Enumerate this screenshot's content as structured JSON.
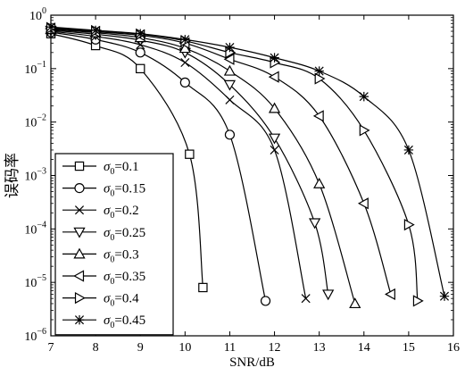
{
  "chart_data": {
    "type": "line",
    "xlabel": "SNR/dB",
    "ylabel": "误码率",
    "xlim": [
      7,
      16
    ],
    "ylim_exp": [
      -6,
      0
    ],
    "yscale": "log",
    "grid": false,
    "legend_position": "bottom-left",
    "x_ticks": [
      "7",
      "8",
      "9",
      "10",
      "11",
      "12",
      "13",
      "14",
      "15",
      "16"
    ],
    "y_ticks": [
      {
        "base": "10",
        "exp": "0"
      },
      {
        "base": "10",
        "exp": "−1"
      },
      {
        "base": "10",
        "exp": "−2"
      },
      {
        "base": "10",
        "exp": "−3"
      },
      {
        "base": "10",
        "exp": "−4"
      },
      {
        "base": "10",
        "exp": "−5"
      },
      {
        "base": "10",
        "exp": "−6"
      }
    ],
    "series": [
      {
        "name": "σ0=0.1",
        "symbol": "σ",
        "sub": "0",
        "value": "=0.1",
        "marker": "square",
        "x": [
          7,
          8,
          9,
          10.1,
          10.4
        ],
        "y": [
          0.45,
          0.27,
          0.1,
          0.0025,
          8e-06
        ]
      },
      {
        "name": "σ0=0.15",
        "symbol": "σ",
        "sub": "0",
        "value": "=0.15",
        "marker": "circle",
        "x": [
          7,
          8,
          9,
          10,
          11,
          11.8
        ],
        "y": [
          0.48,
          0.35,
          0.2,
          0.055,
          0.0058,
          4.5e-06
        ]
      },
      {
        "name": "σ0=0.2",
        "symbol": "σ",
        "sub": "0",
        "value": "=0.2",
        "marker": "x",
        "x": [
          7,
          8,
          9,
          10,
          11,
          12,
          12.7
        ],
        "y": [
          0.5,
          0.4,
          0.28,
          0.13,
          0.026,
          0.003,
          5e-06
        ]
      },
      {
        "name": "σ0=0.25",
        "symbol": "σ",
        "sub": "0",
        "value": "=0.25",
        "marker": "triangle-down",
        "x": [
          7,
          8,
          9,
          10,
          11,
          12,
          12.9,
          13.2
        ],
        "y": [
          0.52,
          0.44,
          0.34,
          0.2,
          0.05,
          0.005,
          0.00013,
          6e-06
        ]
      },
      {
        "name": "σ0=0.3",
        "symbol": "σ",
        "sub": "0",
        "value": "=0.3",
        "marker": "triangle-up",
        "x": [
          7,
          8,
          9,
          10,
          11,
          12,
          13,
          13.8
        ],
        "y": [
          0.54,
          0.47,
          0.38,
          0.24,
          0.09,
          0.018,
          0.0007,
          4e-06
        ]
      },
      {
        "name": "σ0=0.35",
        "symbol": "σ",
        "sub": "0",
        "value": "=0.35",
        "marker": "triangle-left",
        "x": [
          7,
          8,
          9,
          10,
          11,
          12,
          13,
          14,
          14.6
        ],
        "y": [
          0.56,
          0.49,
          0.42,
          0.3,
          0.15,
          0.07,
          0.013,
          0.0003,
          6e-06
        ]
      },
      {
        "name": "σ0=0.4",
        "symbol": "σ",
        "sub": "0",
        "value": "=0.4",
        "marker": "triangle-right",
        "x": [
          7,
          8,
          9,
          10,
          11,
          12,
          13,
          14,
          15,
          15.2
        ],
        "y": [
          0.58,
          0.51,
          0.44,
          0.33,
          0.2,
          0.13,
          0.065,
          0.007,
          0.00012,
          4.5e-06
        ]
      },
      {
        "name": "σ0=0.45",
        "symbol": "σ",
        "sub": "0",
        "value": "=0.45",
        "marker": "asterisk",
        "x": [
          7,
          8,
          9,
          10,
          11,
          12,
          13,
          14,
          15,
          15.8
        ],
        "y": [
          0.6,
          0.52,
          0.45,
          0.35,
          0.25,
          0.16,
          0.09,
          0.03,
          0.003,
          5.5e-06
        ]
      }
    ]
  }
}
